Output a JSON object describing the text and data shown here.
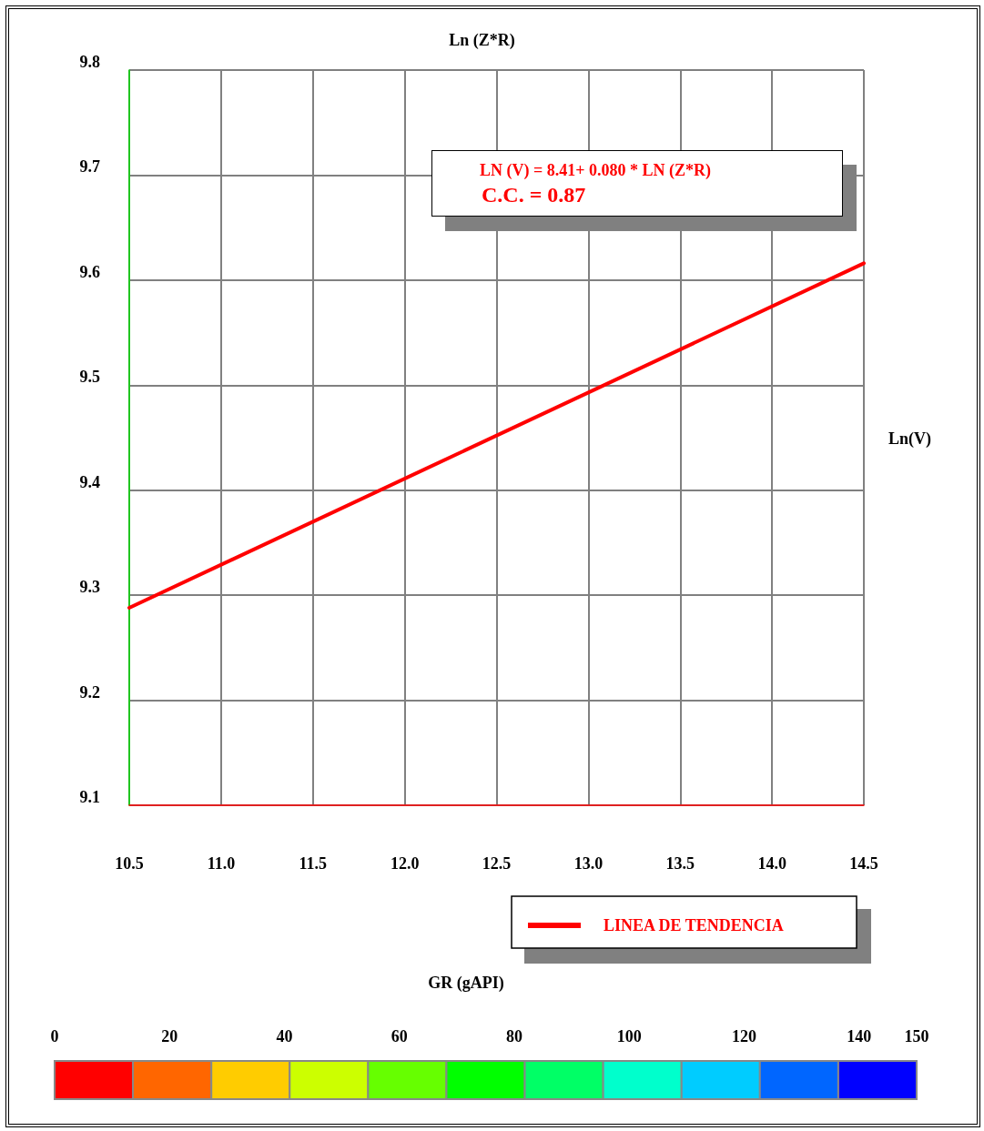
{
  "chart_data": {
    "type": "line",
    "xlabel": "Ln (Z*R)",
    "ylabel": "Ln(V)",
    "x": [
      10.5,
      14.5
    ],
    "series": [
      {
        "name": "LINEA DE TENDENCIA",
        "color": "#ff0000",
        "values": [
          9.288,
          9.616
        ]
      }
    ],
    "xlim": [
      10.5,
      14.5
    ],
    "xticks": [
      10.5,
      "11.0",
      11.5,
      "12.0",
      12.5,
      "13.0",
      13.5,
      "14.0",
      14.5
    ],
    "ylim": [
      9.1,
      9.8
    ],
    "yticks": [
      9.1,
      9.2,
      9.3,
      9.4,
      9.5,
      9.6,
      9.7,
      9.8
    ],
    "grid": true,
    "legend": "bottom",
    "marker": "none",
    "line_style": "solid",
    "annotations": [
      "LN (V) = 8.41+ 0.080 * LN (Z*R)",
      "C.C. = 0.87"
    ],
    "clabel": "GR (gAPI)",
    "clim": [
      0,
      150
    ],
    "cticks": [
      0,
      20,
      40,
      60,
      80,
      100,
      120,
      140,
      150
    ],
    "colors": [
      "#ff0000",
      "#ff6600",
      "#ffcc00",
      "#ccff00",
      "#66ff00",
      "#00ff00",
      "#00ff66",
      "#00ffcc",
      "#00ccff",
      "#0066ff",
      "#0000ff"
    ]
  }
}
